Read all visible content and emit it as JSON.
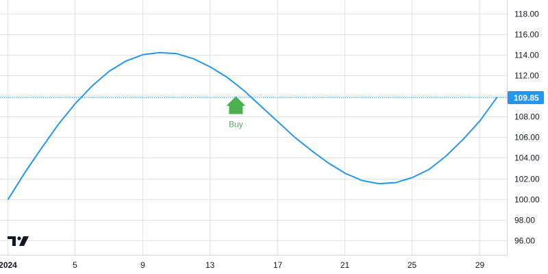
{
  "chart_data": {
    "type": "line",
    "title": "",
    "xlabel": "",
    "ylabel": "",
    "ylim": [
      94.6,
      119.3
    ],
    "y_ticks": [
      "96.00",
      "98.00",
      "100.00",
      "102.00",
      "104.00",
      "106.00",
      "108.00",
      "110.00",
      "112.00",
      "114.00",
      "116.00",
      "118.00"
    ],
    "x_ticks": [
      {
        "date": "2024-01-01",
        "label": "2024",
        "bold": true
      },
      {
        "date": "2024-01-05",
        "label": "5",
        "bold": false
      },
      {
        "date": "2024-01-09",
        "label": "9",
        "bold": false
      },
      {
        "date": "2024-01-13",
        "label": "13",
        "bold": false
      },
      {
        "date": "2024-01-17",
        "label": "17",
        "bold": false
      },
      {
        "date": "2024-01-21",
        "label": "21",
        "bold": false
      },
      {
        "date": "2024-01-25",
        "label": "25",
        "bold": false
      },
      {
        "date": "2024-01-29",
        "label": "29",
        "bold": false
      }
    ],
    "x": [
      "2024-01-01",
      "2024-01-02",
      "2024-01-03",
      "2024-01-04",
      "2024-01-05",
      "2024-01-06",
      "2024-01-07",
      "2024-01-08",
      "2024-01-09",
      "2024-01-10",
      "2024-01-11",
      "2024-01-12",
      "2024-01-13",
      "2024-01-14",
      "2024-01-15",
      "2024-01-16",
      "2024-01-17",
      "2024-01-18",
      "2024-01-19",
      "2024-01-20",
      "2024-01-21",
      "2024-01-22",
      "2024-01-23",
      "2024-01-24",
      "2024-01-25",
      "2024-01-26",
      "2024-01-27",
      "2024-01-28",
      "2024-01-29",
      "2024-01-30"
    ],
    "series": [
      {
        "color": "#2196f3",
        "values": [
          100.0,
          102.6,
          105.0,
          107.3,
          109.3,
          111.0,
          112.4,
          113.4,
          114.0,
          114.2,
          114.1,
          113.6,
          112.8,
          111.8,
          110.5,
          109.0,
          107.5,
          106.0,
          104.7,
          103.5,
          102.5,
          101.8,
          101.5,
          101.6,
          102.1,
          102.9,
          104.2,
          105.8,
          107.6,
          109.85
        ]
      }
    ],
    "last_price": {
      "value": 109.85,
      "label": "109.85",
      "color": "#2196f3"
    },
    "markers": [
      {
        "date": "2024-01-15",
        "label": "Buy",
        "color": "#4caf50",
        "shape": "arrow-up"
      }
    ],
    "grid": true,
    "logo_icon": "tradingview-logo-icon"
  }
}
